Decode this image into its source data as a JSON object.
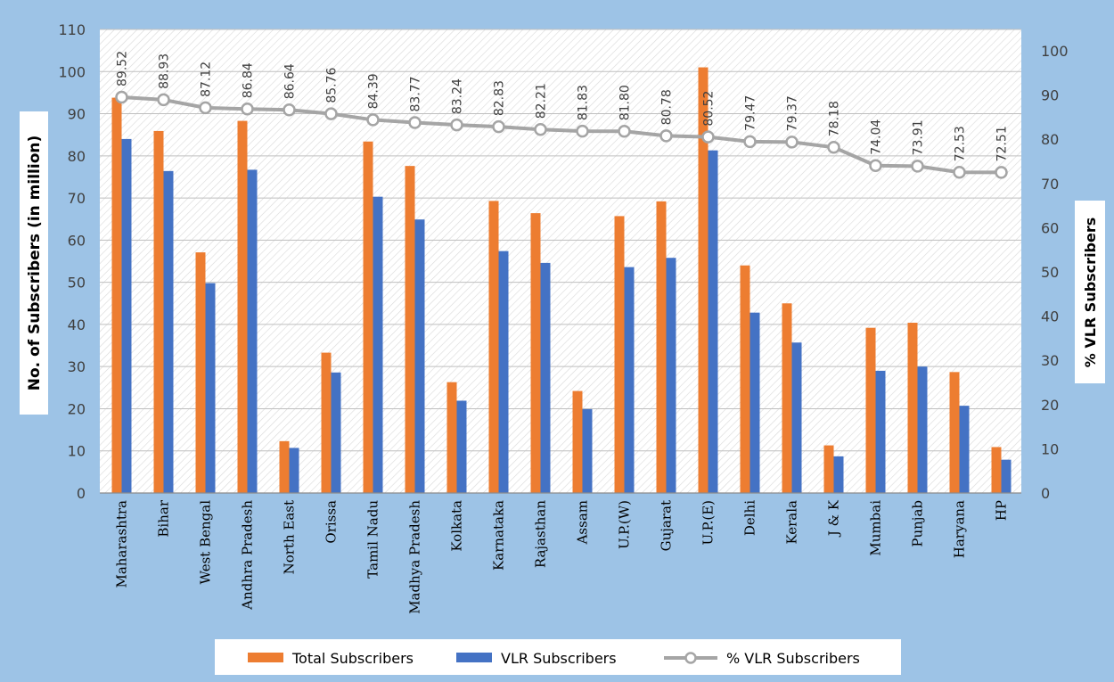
{
  "chart_data": {
    "type": "bar",
    "title": "",
    "categories": [
      "Maharashtra",
      "Bihar",
      "West Bengal",
      "Andhra Pradesh",
      "North East",
      "Orissa",
      "Tamil Nadu",
      "Madhya Pradesh",
      "Kolkata",
      "Karnataka",
      "Rajasthan",
      "Assam",
      "U.P.(W)",
      "Gujarat",
      "U.P.(E)",
      "Delhi",
      "Kerala",
      "J & K",
      "Mumbai",
      "Punjab",
      "Haryana",
      "HP"
    ],
    "series": [
      {
        "name": "Total Subscribers",
        "type": "bar",
        "axis": "left",
        "color": "#ED7D31",
        "values": [
          93.8,
          85.9,
          57.1,
          88.3,
          12.3,
          33.3,
          83.4,
          77.6,
          26.3,
          69.3,
          66.4,
          24.2,
          65.7,
          69.2,
          101.0,
          54.0,
          45.0,
          11.3,
          39.2,
          40.4,
          28.7,
          10.9
        ]
      },
      {
        "name": "VLR Subscribers",
        "type": "bar",
        "axis": "left",
        "color": "#4472C4",
        "values": [
          84.0,
          76.4,
          49.8,
          76.7,
          10.7,
          28.6,
          70.3,
          64.9,
          21.9,
          57.4,
          54.6,
          19.9,
          53.6,
          55.8,
          81.3,
          42.8,
          35.7,
          8.7,
          29.0,
          30.0,
          20.7,
          7.9
        ]
      },
      {
        "name": "% VLR Subscribers",
        "type": "line",
        "axis": "right",
        "color": "#A5A5A5",
        "values": [
          89.52,
          88.93,
          87.12,
          86.84,
          86.64,
          85.76,
          84.39,
          83.77,
          83.24,
          82.83,
          82.21,
          81.83,
          81.8,
          80.78,
          80.52,
          79.47,
          79.37,
          78.18,
          74.04,
          73.91,
          72.53,
          72.51
        ]
      }
    ],
    "data_labels": [
      "89.52",
      "88.93",
      "87.12",
      "86.84",
      "86.64",
      "85.76",
      "84.39",
      "83.77",
      "83.24",
      "82.83",
      "82.21",
      "81.83",
      "81.80",
      "80.78",
      "80.52",
      "79.47",
      "79.37",
      "78.18",
      "74.04",
      "73.91",
      "72.53",
      "72.51"
    ],
    "ylabel": "No. of Subscribers (in million)",
    "y2label": "% VLR Subscribers",
    "ylim": [
      0,
      110
    ],
    "yticks": [
      "0",
      "10",
      "20",
      "30",
      "40",
      "50",
      "60",
      "70",
      "80",
      "90",
      "100",
      "110"
    ],
    "y2lim": [
      0,
      100
    ],
    "y2ticks": [
      "0",
      "10",
      "20",
      "30",
      "40",
      "50",
      "60",
      "70",
      "80",
      "90",
      "100"
    ],
    "grid": true,
    "legend_position": "bottom",
    "colors": {
      "background": "#9DC3E6",
      "plot_area": "#FFFFFF",
      "total": "#ED7D31",
      "vlr": "#4472C4",
      "percent_line": "#A5A5A5"
    }
  }
}
